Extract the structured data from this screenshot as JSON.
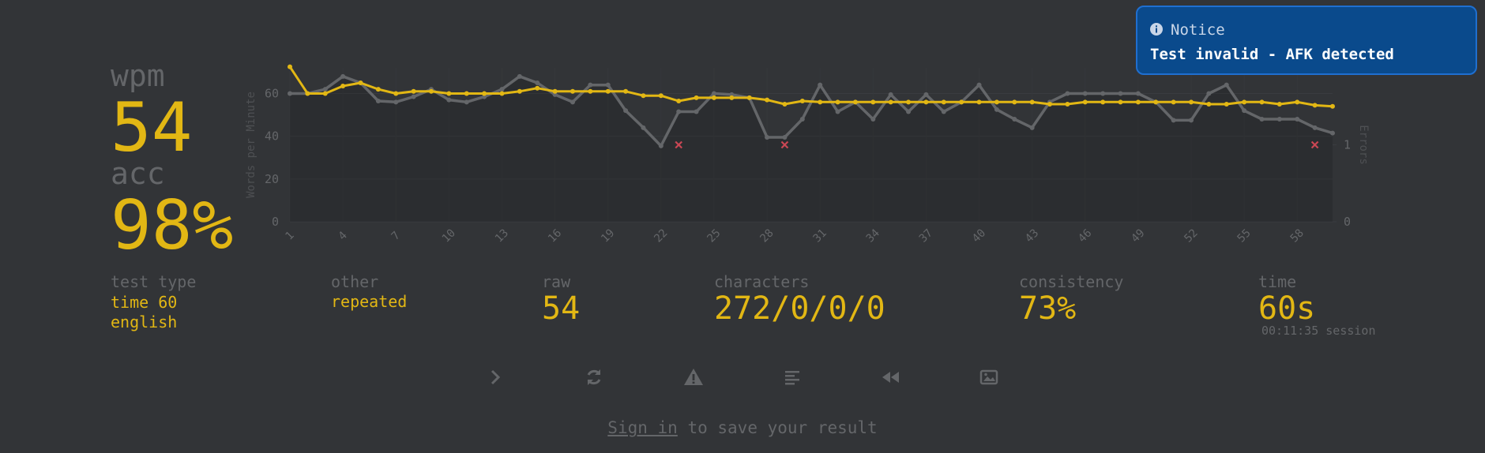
{
  "stats": {
    "wpm_label": "wpm",
    "wpm": "54",
    "acc_label": "acc",
    "acc": "98%",
    "test_type_label": "test type",
    "test_type": [
      "time 60",
      "english"
    ],
    "other_label": "other",
    "other": "repeated",
    "raw_label": "raw",
    "raw": "54",
    "characters_label": "characters",
    "characters": "272/0/0/0",
    "consistency_label": "consistency",
    "consistency": "73%",
    "time_label": "time",
    "time": "60s",
    "session": "00:11:35 session"
  },
  "chart_data": {
    "type": "line",
    "ylabel": "Words per Minute",
    "y2label": "Errors",
    "x": [
      1,
      2,
      3,
      4,
      5,
      6,
      7,
      8,
      9,
      10,
      11,
      12,
      13,
      14,
      15,
      16,
      17,
      18,
      19,
      20,
      21,
      22,
      23,
      24,
      25,
      26,
      27,
      28,
      29,
      30,
      31,
      32,
      33,
      34,
      35,
      36,
      37,
      38,
      39,
      40,
      41,
      42,
      43,
      44,
      45,
      46,
      47,
      48,
      49,
      50,
      51,
      52,
      53,
      54,
      55,
      56,
      57,
      58,
      59,
      60
    ],
    "xlim": [
      1,
      60
    ],
    "xticks": [
      1,
      4,
      7,
      10,
      13,
      16,
      19,
      22,
      25,
      28,
      31,
      34,
      37,
      40,
      43,
      46,
      49,
      52,
      55,
      58
    ],
    "ylim": [
      0,
      72
    ],
    "yticks": [
      0,
      20,
      40,
      60
    ],
    "y2lim": [
      0,
      2
    ],
    "y2ticks": [
      0,
      1
    ],
    "grid": true,
    "series": [
      {
        "color": "#646669",
        "values": [
          60,
          60,
          62,
          68,
          65,
          56.5,
          56,
          58.5,
          62,
          57,
          56,
          58.5,
          62,
          68,
          65,
          59.5,
          56,
          64,
          64,
          52,
          44,
          35.5,
          51.5,
          51.5,
          60,
          59.5,
          58,
          39.5,
          39.5,
          48,
          64,
          51.5,
          56,
          48,
          59.5,
          51.5,
          59.5,
          51.5,
          56,
          64,
          52.5,
          48,
          44,
          56,
          60,
          60,
          60,
          60,
          60,
          56,
          47.5,
          47.5,
          60,
          64,
          52,
          48,
          48,
          48,
          44,
          41.5
        ]
      },
      {
        "color": "#e2b714",
        "values": [
          72.5,
          60,
          60,
          63.5,
          65,
          62,
          60,
          61,
          61,
          60,
          60,
          60,
          60,
          61,
          62.5,
          61,
          61,
          61,
          61,
          61,
          59,
          59,
          56.5,
          58,
          58,
          58,
          58,
          57,
          55,
          56.5,
          56,
          56,
          56,
          56,
          56,
          56,
          56,
          56,
          56,
          56,
          56,
          56,
          56,
          55,
          55,
          56,
          56,
          56,
          56,
          56,
          56,
          56,
          55,
          55,
          56,
          56,
          55,
          56,
          54.5,
          54
        ]
      },
      {
        "color": "#ca4754",
        "axis": "y2",
        "values": [
          null,
          null,
          null,
          null,
          null,
          null,
          null,
          null,
          null,
          null,
          null,
          null,
          null,
          null,
          null,
          null,
          null,
          null,
          null,
          null,
          null,
          null,
          1,
          null,
          null,
          null,
          null,
          null,
          1,
          null,
          null,
          null,
          null,
          null,
          null,
          null,
          null,
          null,
          null,
          null,
          null,
          null,
          null,
          null,
          null,
          null,
          null,
          null,
          null,
          null,
          null,
          null,
          null,
          null,
          null,
          null,
          null,
          null,
          1,
          null
        ]
      }
    ]
  },
  "notice": {
    "title": "Notice",
    "message": "Test invalid - AFK detected"
  },
  "footer": {
    "link": "Sign in",
    "text": " to save your result"
  }
}
